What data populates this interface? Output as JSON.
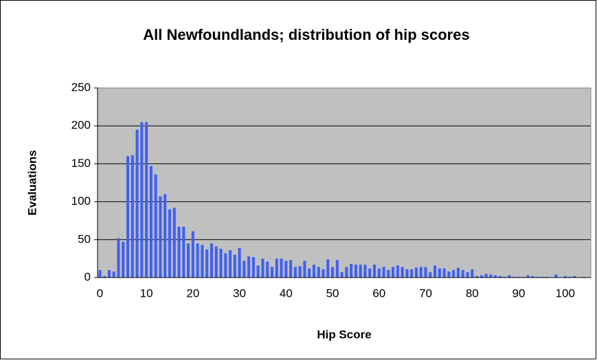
{
  "chart_data": {
    "type": "bar",
    "title": "All Newfoundlands; distribution of hip scores",
    "x_label": "Hip Score",
    "y_label": "Evaluations",
    "categories": [
      "0",
      null,
      null,
      null,
      null,
      null,
      null,
      null,
      null,
      null,
      "10",
      null,
      null,
      null,
      null,
      null,
      null,
      null,
      null,
      null,
      "20",
      null,
      null,
      null,
      null,
      null,
      null,
      null,
      null,
      null,
      "30",
      null,
      null,
      null,
      null,
      null,
      null,
      null,
      null,
      null,
      "40",
      null,
      null,
      null,
      null,
      null,
      null,
      null,
      null,
      null,
      "50",
      null,
      null,
      null,
      null,
      null,
      null,
      null,
      null,
      null,
      "60",
      null,
      null,
      null,
      null,
      null,
      null,
      null,
      null,
      null,
      "70",
      null,
      null,
      null,
      null,
      null,
      null,
      null,
      null,
      null,
      "80",
      null,
      null,
      null,
      null,
      null,
      null,
      null,
      null,
      null,
      "90",
      null,
      null,
      null,
      null,
      null,
      null,
      null,
      null,
      null,
      "100",
      null,
      null,
      null,
      null,
      null
    ],
    "values": [
      10,
      2,
      10,
      8,
      52,
      47,
      160,
      161,
      195,
      205,
      205,
      147,
      136,
      107,
      110,
      90,
      92,
      67,
      67,
      45,
      61,
      45,
      43,
      37,
      45,
      41,
      38,
      32,
      36,
      30,
      39,
      22,
      28,
      27,
      16,
      25,
      21,
      14,
      25,
      25,
      22,
      23,
      14,
      15,
      22,
      12,
      17,
      14,
      11,
      24,
      14,
      23,
      7,
      14,
      18,
      17,
      17,
      17,
      12,
      17,
      12,
      14,
      10,
      14,
      16,
      14,
      11,
      11,
      13,
      14,
      14,
      7,
      16,
      12,
      12,
      8,
      10,
      13,
      10,
      7,
      11,
      2,
      3,
      5,
      4,
      3,
      2,
      1,
      3,
      1,
      1,
      1,
      3,
      2,
      1,
      1,
      1,
      0,
      4,
      0,
      2,
      1,
      2,
      0,
      1,
      0
    ],
    "color": "#4060f0",
    "ylim": [
      0,
      250
    ],
    "yticks": [
      0,
      50,
      100,
      150,
      200,
      250
    ],
    "grid": true
  }
}
